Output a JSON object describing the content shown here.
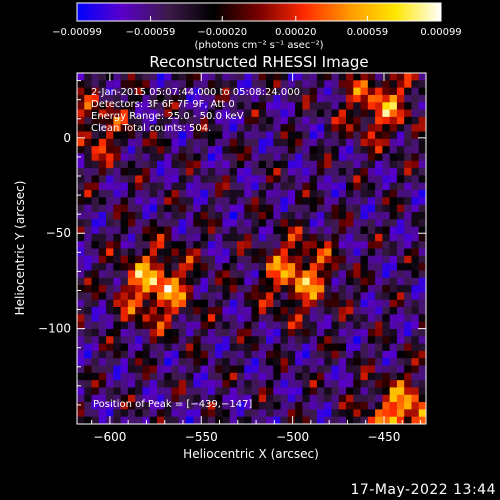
{
  "chart_data": {
    "type": "heatmap",
    "title": "Reconstructed RHESSI Image",
    "xlabel": "Heliocentric X (arcsec)",
    "ylabel": "Heliocentric Y (arcsec)",
    "xlim": [
      -618,
      -427
    ],
    "ylim": [
      -150,
      34
    ],
    "x_ticks": [
      -600,
      -550,
      -500,
      -450
    ],
    "x_tick_labels": [
      "−600",
      "−550",
      "−500",
      "−450"
    ],
    "y_ticks": [
      0,
      -50,
      -100
    ],
    "y_tick_labels": [
      "0",
      "−50",
      "−100"
    ],
    "colorbar": {
      "min": -0.00099,
      "max": 0.00099,
      "ticks": [
        -0.00099,
        -0.00059,
        -0.0002,
        0.0002,
        0.00059,
        0.00099
      ],
      "tick_labels": [
        "−0.00099",
        "−0.00059",
        "−0.00020",
        "0.00020",
        "0.00059",
        "0.00099"
      ],
      "unit_label": "(photons cm⁻² s⁻¹ asec⁻²)",
      "colors": [
        "#0000ff",
        "#5a00c8",
        "#3c1a4a",
        "#000000",
        "#7a0000",
        "#ff2a00",
        "#ff9a00",
        "#ffe600",
        "#ffffff"
      ]
    },
    "annotations": [
      "2-Jan-2015 05:07:44.000 to 05:08:24.000",
      "Detectors: 3F 6F 7F 9F, Att 0",
      "Energy Range: 25.0 - 50.0 keV",
      "Clean    Total counts: 504."
    ],
    "peak_label": "Position of Peak = [−439,−147]",
    "sources": [
      {
        "x": -575,
        "y": -78,
        "peak": 0.00095
      },
      {
        "x": -497,
        "y": -72,
        "peak": 0.00085
      },
      {
        "x": -439,
        "y": -147,
        "peak": 0.00099
      },
      {
        "x": -452,
        "y": 18,
        "peak": 0.00075
      },
      {
        "x": -608,
        "y": 5,
        "peak": 0.00055
      }
    ]
  },
  "footer": {
    "timestamp": "17-May-2022 13:44"
  }
}
